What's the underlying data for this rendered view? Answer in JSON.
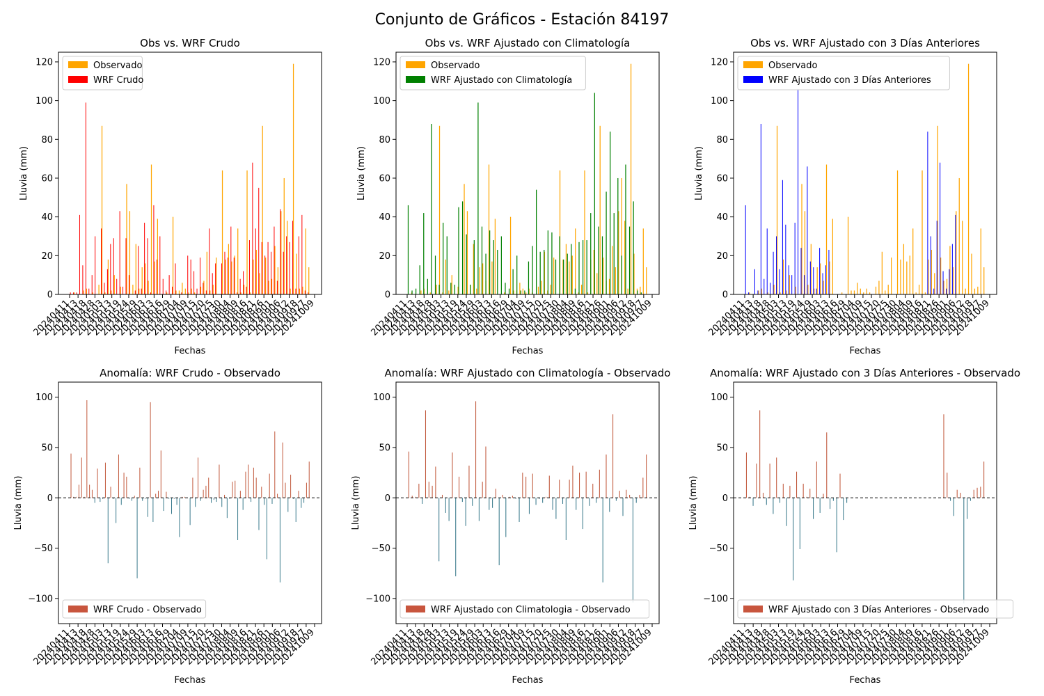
{
  "figure": {
    "suptitle": "Conjunto de Gráficos - Estación 84197"
  },
  "colors": {
    "observado": "#FFA500",
    "crudo": "#FF0000",
    "climatologia": "#008000",
    "tres_dias": "#0000FF",
    "anomaly_pos": "#C1583B",
    "anomaly_neg": "#3A7A8C",
    "legend_anomaly": "#C8553D"
  },
  "chart_data": [
    {
      "type": "bar",
      "title": "Obs vs. WRF Crudo",
      "xlabel": "Fechas",
      "ylabel": "Lluvia (mm)",
      "ylim": [
        0,
        125
      ],
      "yticks": [
        0,
        20,
        40,
        60,
        80,
        100,
        120
      ],
      "xtick_labels": [
        "20240411",
        "20240413",
        "20240418",
        "20240428",
        "20240503",
        "20240513",
        "20240519",
        "20240524",
        "20240529",
        "20240603",
        "20240613",
        "20240616",
        "20240629",
        "20240704",
        "20240709",
        "20240715",
        "20240720",
        "20240725",
        "20240730",
        "20240804",
        "20240809",
        "20240816",
        "20240821",
        "20240826",
        "20240901",
        "20240906",
        "20240912",
        "20240918",
        "20240927",
        "20241009"
      ],
      "legend": [
        "Observado",
        "WRF Crudo"
      ],
      "legend_position": "upper-left",
      "series": [
        {
          "name": "Observado",
          "values": [
            0,
            1,
            0,
            0,
            2,
            3,
            0,
            1,
            0,
            5,
            87,
            1,
            18,
            2,
            10,
            0,
            4,
            0,
            57,
            43,
            5,
            26,
            3,
            14,
            16,
            7,
            67,
            17,
            39,
            0,
            0,
            1,
            0,
            40,
            2,
            2,
            6,
            3,
            1,
            3,
            1,
            0,
            4,
            7,
            22,
            2,
            5,
            19,
            0,
            64,
            18,
            26,
            17,
            20,
            34,
            1,
            5,
            64,
            1,
            18,
            23,
            11,
            87,
            19,
            7,
            8,
            25,
            14,
            43,
            60,
            38,
            3,
            119,
            21,
            3,
            4,
            34,
            14
          ]
        },
        {
          "name": "WRF Crudo",
          "values": [
            1,
            1,
            1,
            41,
            15,
            99,
            3,
            10,
            30,
            0,
            34,
            6,
            13,
            26,
            29,
            8,
            43,
            4,
            29,
            10,
            0,
            2,
            25,
            3,
            37,
            29,
            1,
            46,
            18,
            30,
            8,
            2,
            10,
            4,
            16,
            0,
            1,
            0,
            20,
            18,
            12,
            3,
            19,
            6,
            2,
            34,
            11,
            16,
            0,
            16,
            22,
            19,
            35,
            19,
            1,
            8,
            12,
            4,
            28,
            68,
            34,
            55,
            27,
            20,
            27,
            22,
            35,
            7,
            44,
            22,
            30,
            27,
            38,
            3,
            30,
            41,
            2,
            1
          ]
        }
      ]
    },
    {
      "type": "bar",
      "title": "Obs vs. WRF Ajustado con Climatología",
      "xlabel": "Fechas",
      "ylabel": "Lluvia (mm)",
      "ylim": [
        0,
        125
      ],
      "yticks": [
        0,
        20,
        40,
        60,
        80,
        100,
        120
      ],
      "xtick_labels": [
        "20240411",
        "20240413",
        "20240418",
        "20240428",
        "20240503",
        "20240513",
        "20240519",
        "20240524",
        "20240529",
        "20240603",
        "20240613",
        "20240616",
        "20240629",
        "20240704",
        "20240709",
        "20240715",
        "20240720",
        "20240725",
        "20240730",
        "20240804",
        "20240809",
        "20240816",
        "20240821",
        "20240826",
        "20240901",
        "20240906",
        "20240912",
        "20240918",
        "20240927",
        "20241009"
      ],
      "legend": [
        "Observado",
        "WRF Ajustado con Climatología"
      ],
      "legend_position": "upper-left",
      "series": [
        {
          "name": "Observado",
          "values": [
            0,
            1,
            0,
            0,
            2,
            3,
            0,
            1,
            0,
            5,
            87,
            1,
            18,
            2,
            10,
            0,
            4,
            0,
            57,
            43,
            5,
            26,
            3,
            14,
            16,
            7,
            67,
            17,
            39,
            0,
            0,
            1,
            0,
            40,
            2,
            2,
            6,
            3,
            1,
            3,
            1,
            0,
            4,
            7,
            22,
            2,
            5,
            19,
            0,
            64,
            18,
            26,
            17,
            20,
            34,
            1,
            5,
            64,
            1,
            18,
            23,
            11,
            87,
            19,
            7,
            8,
            25,
            14,
            43,
            60,
            38,
            3,
            119,
            21,
            3,
            4,
            34,
            14
          ]
        },
        {
          "name": "WRF Ajustado con Climatología",
          "values": [
            46,
            2,
            3,
            15,
            42,
            8,
            88,
            20,
            5,
            37,
            30,
            6,
            5,
            45,
            48,
            31,
            5,
            28,
            99,
            35,
            21,
            33,
            28,
            23,
            30,
            6,
            3,
            13,
            20,
            2,
            2,
            17,
            25,
            54,
            22,
            23,
            33,
            32,
            18,
            30,
            18,
            21,
            26,
            3,
            27,
            28,
            28,
            42,
            104,
            35,
            30,
            53,
            84,
            42,
            60,
            20,
            67,
            35,
            48,
            2,
            1,
            0
          ]
        }
      ]
    },
    {
      "type": "bar",
      "title": "Obs vs. WRF Ajustado con 3 Días Anteriores",
      "xlabel": "Fechas",
      "ylabel": "Lluvia (mm)",
      "ylim": [
        0,
        125
      ],
      "yticks": [
        0,
        20,
        40,
        60,
        80,
        100,
        120
      ],
      "xtick_labels": [
        "20240411",
        "20240413",
        "20240418",
        "20240428",
        "20240503",
        "20240513",
        "20240519",
        "20240524",
        "20240529",
        "20240603",
        "20240613",
        "20240616",
        "20240629",
        "20240704",
        "20240709",
        "20240715",
        "20240720",
        "20240725",
        "20240730",
        "20240804",
        "20240809",
        "20240816",
        "20240821",
        "20240826",
        "20240901",
        "20240906",
        "20240912",
        "20240918",
        "20240927",
        "20241009"
      ],
      "legend": [
        "Observado",
        "WRF Ajustado con 3 Días Anteriores"
      ],
      "legend_position": "upper-left",
      "series": [
        {
          "name": "Observado",
          "values": [
            0,
            1,
            0,
            0,
            2,
            3,
            0,
            1,
            0,
            5,
            87,
            1,
            18,
            2,
            10,
            0,
            4,
            0,
            57,
            43,
            5,
            26,
            3,
            14,
            16,
            7,
            67,
            17,
            39,
            0,
            0,
            1,
            0,
            40,
            2,
            2,
            6,
            3,
            1,
            3,
            1,
            0,
            4,
            7,
            22,
            2,
            5,
            19,
            0,
            64,
            18,
            26,
            17,
            20,
            34,
            1,
            5,
            64,
            1,
            18,
            23,
            11,
            87,
            19,
            7,
            8,
            25,
            14,
            43,
            60,
            38,
            3,
            119,
            21,
            3,
            4,
            34,
            14
          ]
        },
        {
          "name": "WRF Ajustado con 3 Días Anteriores",
          "values": [
            46,
            1,
            0,
            13,
            2,
            88,
            8,
            34,
            6,
            22,
            30,
            13,
            59,
            36,
            15,
            10,
            37,
            106,
            24,
            10,
            66,
            17,
            14,
            3,
            24,
            11,
            15,
            23,
            0,
            0,
            0,
            0,
            0,
            0,
            0,
            0,
            0,
            0,
            0,
            0,
            0,
            0,
            0,
            0,
            0,
            0,
            0,
            0,
            0,
            0,
            0,
            0,
            0,
            0,
            0,
            0,
            0,
            0,
            0,
            84,
            30,
            3,
            38,
            68,
            12,
            3,
            13,
            26,
            41,
            0,
            0,
            0,
            0,
            0,
            0,
            0,
            0,
            0
          ]
        }
      ]
    },
    {
      "type": "bar",
      "title": "Anomalía: WRF Crudo - Observado",
      "xlabel": "Fechas",
      "ylabel": "Lluvia (mm)",
      "ylim": [
        -125,
        115
      ],
      "yticks": [
        -100,
        -50,
        0,
        50,
        100
      ],
      "xtick_labels": [
        "20240411",
        "20240413",
        "20240418",
        "20240428",
        "20240503",
        "20240513",
        "20240519",
        "20240524",
        "20240529",
        "20240603",
        "20240613",
        "20240616",
        "20240629",
        "20240704",
        "20240709",
        "20240715",
        "20240720",
        "20240725",
        "20240730",
        "20240804",
        "20240809",
        "20240816",
        "20240821",
        "20240826",
        "20240901",
        "20240906",
        "20240912",
        "20240918",
        "20240927",
        "20241009"
      ],
      "legend": [
        "WRF Crudo - Observado"
      ],
      "legend_position": "lower-left",
      "series": [
        {
          "name": "WRF Crudo - Observado",
          "values": [
            44,
            1,
            1,
            13,
            40,
            1,
            97,
            13,
            8,
            -5,
            29,
            -4,
            -1,
            35,
            -65,
            11,
            -1,
            -25,
            43,
            -7,
            25,
            21,
            -1,
            -3,
            2,
            -80,
            30,
            -3,
            -1,
            -19,
            95,
            -24,
            4,
            7,
            47,
            -13,
            6,
            -1,
            -16,
            -1,
            -7,
            -39,
            1,
            1,
            0,
            -27,
            20,
            -9,
            40,
            -3,
            8,
            12,
            20,
            -5,
            -2,
            -4,
            33,
            -9,
            3,
            -20,
            -1,
            16,
            17,
            -42,
            7,
            -12,
            26,
            33,
            -4,
            30,
            20,
            -32,
            11,
            -7,
            -61,
            24,
            -6,
            66,
            4,
            -84,
            55,
            15,
            -14,
            23,
            -1,
            -24,
            7,
            -10,
            -5,
            15,
            36
          ]
        }
      ]
    },
    {
      "type": "bar",
      "title": "Anomalía: WRF Ajustado con Climatología - Observado",
      "xlabel": "Fechas",
      "ylabel": "Lluvia (mm)",
      "ylim": [
        -125,
        115
      ],
      "yticks": [
        -100,
        -50,
        0,
        50,
        100
      ],
      "xtick_labels": [
        "20240411",
        "20240413",
        "20240418",
        "20240428",
        "20240503",
        "20240513",
        "20240519",
        "20240524",
        "20240529",
        "20240603",
        "20240613",
        "20240616",
        "20240629",
        "20240704",
        "20240709",
        "20240715",
        "20240720",
        "20240725",
        "20240730",
        "20240804",
        "20240809",
        "20240816",
        "20240821",
        "20240826",
        "20240901",
        "20240906",
        "20240912",
        "20240918",
        "20240927",
        "20241009"
      ],
      "legend": [
        "WRF Ajustado con Climatologia - Observado"
      ],
      "legend_position": "lower-left",
      "series": [
        {
          "name": "WRF Ajustado con Climatologia - Observado",
          "values": [
            46,
            2,
            1,
            14,
            -6,
            87,
            16,
            12,
            31,
            -63,
            3,
            -15,
            -23,
            45,
            -78,
            21,
            -4,
            -28,
            32,
            -8,
            96,
            -23,
            16,
            51,
            -12,
            -10,
            9,
            -67,
            3,
            -39,
            1,
            2,
            -1,
            -24,
            25,
            21,
            -16,
            24,
            -7,
            -1,
            -5,
            1,
            22,
            -12,
            -21,
            18,
            -6,
            -42,
            18,
            32,
            -12,
            25,
            -31,
            26,
            -8,
            14,
            -5,
            28,
            -84,
            43,
            -14,
            83,
            -3,
            7,
            -18,
            8,
            3,
            -104,
            -5,
            3,
            20,
            43
          ]
        }
      ]
    },
    {
      "type": "bar",
      "title": "Anomalía: WRF Ajustado con 3 Días Anteriores - Observado",
      "xlabel": "Fechas",
      "ylabel": "Lluvia (mm)",
      "ylim": [
        -125,
        115
      ],
      "yticks": [
        -100,
        -50,
        0,
        50,
        100
      ],
      "xtick_labels": [
        "20240411",
        "20240413",
        "20240418",
        "20240428",
        "20240503",
        "20240513",
        "20240519",
        "20240524",
        "20240529",
        "20240603",
        "20240613",
        "20240616",
        "20240629",
        "20240704",
        "20240709",
        "20240715",
        "20240720",
        "20240725",
        "20240730",
        "20240804",
        "20240809",
        "20240816",
        "20240821",
        "20240826",
        "20240901",
        "20240906",
        "20240912",
        "20240918",
        "20240927",
        "20241009"
      ],
      "legend": [
        "WRF Ajustado con 3 Días Anteriores - Observado"
      ],
      "legend_position": "lower-left",
      "series": [
        {
          "name": "WRF Ajustado con 3 Días Anteriores - Observado",
          "values": [
            45,
            1,
            -8,
            34,
            87,
            5,
            -7,
            34,
            -16,
            40,
            -5,
            14,
            -28,
            12,
            -82,
            26,
            -51,
            14,
            1,
            9,
            -21,
            36,
            -15,
            4,
            65,
            -11,
            -3,
            -54,
            24,
            -22,
            -5,
            0,
            0,
            0,
            0,
            0,
            0,
            0,
            0,
            0,
            0,
            0,
            0,
            0,
            0,
            0,
            0,
            0,
            0,
            0,
            0,
            0,
            0,
            0,
            0,
            0,
            0,
            0,
            0,
            83,
            25,
            -3,
            -18,
            8,
            5,
            -105,
            -21,
            -3,
            8,
            10,
            11,
            36
          ]
        }
      ]
    }
  ]
}
